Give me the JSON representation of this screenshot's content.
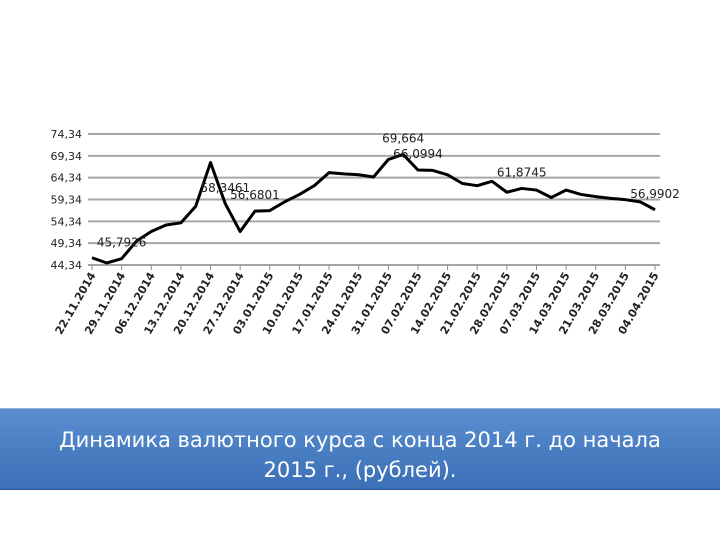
{
  "chart_data": {
    "type": "line",
    "categories": [
      "22.11.2014",
      null,
      "29.11.2014",
      null,
      "06.12.2014",
      null,
      "13.12.2014",
      null,
      "20.12.2014",
      null,
      "27.12.2014",
      null,
      "03.01.2015",
      null,
      "10.01.2015",
      null,
      "17.01.2015",
      null,
      "24.01.2015",
      null,
      "31.01.2015",
      null,
      "07.02.2015",
      null,
      "14.02.2015",
      null,
      "21.02.2015",
      null,
      "28.02.2015",
      null,
      "07.03.2015",
      null,
      "14.03.2015",
      null,
      "21.03.2015",
      null,
      "28.03.2015",
      null,
      "04.04.2015"
    ],
    "values": [
      46.0,
      44.8,
      45.7926,
      49.8,
      52.0,
      53.5,
      54.0,
      57.8,
      67.8,
      58.3461,
      52.0,
      56.6801,
      56.8,
      58.8,
      60.5,
      62.5,
      65.5,
      65.2,
      65.0,
      64.5,
      68.5,
      69.664,
      66.0994,
      66.0,
      65.0,
      63.0,
      62.5,
      63.5,
      61.0,
      61.8745,
      61.5,
      59.8,
      61.5,
      60.5,
      60.0,
      59.6,
      59.3,
      58.8,
      56.9902
    ],
    "value_labels": [
      null,
      null,
      "45,7926",
      null,
      null,
      null,
      null,
      null,
      null,
      "58,3461",
      null,
      "56,6801",
      null,
      null,
      null,
      null,
      null,
      null,
      null,
      null,
      null,
      "69,664",
      "66,0994",
      null,
      null,
      null,
      null,
      null,
      null,
      "61,8745",
      null,
      null,
      null,
      null,
      null,
      null,
      null,
      null,
      "56,9902"
    ],
    "color": "#000000",
    "ylim": [
      44.34,
      74.34
    ],
    "yticks": [
      {
        "value": 44.34,
        "label": "44,34"
      },
      {
        "value": 49.34,
        "label": "49,34"
      },
      {
        "value": 54.34,
        "label": "54,34"
      },
      {
        "value": 59.34,
        "label": "59,34"
      },
      {
        "value": 64.34,
        "label": "64,34"
      },
      {
        "value": 69.34,
        "label": "69,34"
      },
      {
        "value": 74.34,
        "label": "74,34"
      }
    ],
    "grid": true
  },
  "caption": "Динамика валютного курса с конца 2014 г. до начала 2015 г., (рублей)."
}
